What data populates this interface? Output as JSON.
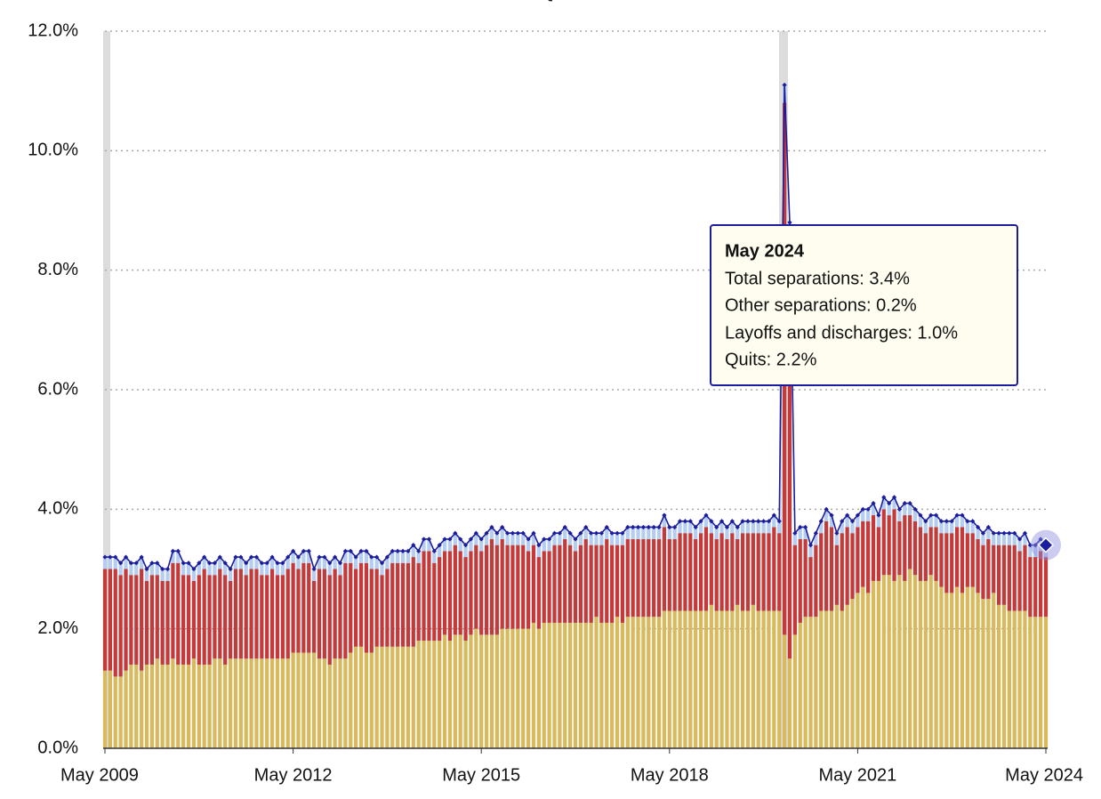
{
  "chart_data": {
    "type": "bar",
    "stacked": true,
    "categories": [
      "May 2009",
      null,
      null,
      null,
      null,
      null,
      null,
      null,
      null,
      null,
      null,
      null,
      null,
      null,
      null,
      null,
      null,
      null,
      null,
      null,
      null,
      null,
      null,
      null,
      null,
      null,
      null,
      null,
      null,
      null,
      null,
      null,
      null,
      null,
      null,
      null,
      "May 2012",
      null,
      null,
      null,
      null,
      null,
      null,
      null,
      null,
      null,
      null,
      null,
      null,
      null,
      null,
      null,
      null,
      null,
      null,
      null,
      null,
      null,
      null,
      null,
      null,
      null,
      null,
      null,
      null,
      null,
      null,
      null,
      null,
      null,
      null,
      null,
      "May 2015",
      null,
      null,
      null,
      null,
      null,
      null,
      null,
      null,
      null,
      null,
      null,
      null,
      null,
      null,
      null,
      null,
      null,
      null,
      null,
      null,
      null,
      null,
      null,
      null,
      null,
      null,
      null,
      null,
      null,
      null,
      null,
      null,
      null,
      null,
      null,
      "May 2018",
      null,
      null,
      null,
      null,
      null,
      null,
      null,
      null,
      null,
      null,
      null,
      null,
      null,
      null,
      null,
      null,
      null,
      null,
      null,
      null,
      null,
      null,
      null,
      null,
      null,
      null,
      null,
      null,
      null,
      null,
      null,
      null,
      null,
      null,
      null,
      "May 2021",
      null,
      null,
      null,
      null,
      null,
      null,
      null,
      null,
      null,
      null,
      null,
      null,
      null,
      null,
      null,
      null,
      null,
      null,
      null,
      null,
      null,
      null,
      null,
      null,
      null,
      null,
      null,
      null,
      null,
      null,
      null,
      null,
      null,
      null,
      null,
      "May 2024"
    ],
    "series": [
      {
        "name": "Quits",
        "type": "bar",
        "color": "#d8b95c",
        "values": [
          1.3,
          1.3,
          1.2,
          1.2,
          1.3,
          1.4,
          1.4,
          1.3,
          1.4,
          1.4,
          1.5,
          1.4,
          1.4,
          1.5,
          1.4,
          1.4,
          1.4,
          1.5,
          1.4,
          1.4,
          1.4,
          1.5,
          1.5,
          1.4,
          1.5,
          1.5,
          1.5,
          1.5,
          1.5,
          1.5,
          1.5,
          1.5,
          1.5,
          1.5,
          1.5,
          1.5,
          1.6,
          1.6,
          1.6,
          1.6,
          1.6,
          1.5,
          1.5,
          1.4,
          1.5,
          1.5,
          1.5,
          1.6,
          1.7,
          1.7,
          1.6,
          1.6,
          1.7,
          1.7,
          1.7,
          1.7,
          1.7,
          1.7,
          1.7,
          1.7,
          1.8,
          1.8,
          1.8,
          1.8,
          1.8,
          1.9,
          1.8,
          1.9,
          1.9,
          1.8,
          1.9,
          2.0,
          1.9,
          1.9,
          1.9,
          1.9,
          2.0,
          2.0,
          2.0,
          2.0,
          2.0,
          2.0,
          2.1,
          2.0,
          2.1,
          2.1,
          2.1,
          2.1,
          2.1,
          2.1,
          2.1,
          2.1,
          2.1,
          2.1,
          2.2,
          2.1,
          2.1,
          2.1,
          2.2,
          2.1,
          2.2,
          2.2,
          2.2,
          2.2,
          2.2,
          2.2,
          2.2,
          2.3,
          2.3,
          2.3,
          2.3,
          2.3,
          2.3,
          2.3,
          2.3,
          2.3,
          2.4,
          2.3,
          2.3,
          2.3,
          2.3,
          2.4,
          2.3,
          2.3,
          2.4,
          2.3,
          2.3,
          2.3,
          2.3,
          2.3,
          1.9,
          1.5,
          1.9,
          2.1,
          2.2,
          2.2,
          2.2,
          2.3,
          2.3,
          2.3,
          2.4,
          2.3,
          2.4,
          2.5,
          2.6,
          2.7,
          2.6,
          2.8,
          2.8,
          2.9,
          2.9,
          2.8,
          2.9,
          2.8,
          3.0,
          2.9,
          2.8,
          2.8,
          2.9,
          2.8,
          2.7,
          2.6,
          2.6,
          2.7,
          2.6,
          2.7,
          2.7,
          2.6,
          2.5,
          2.5,
          2.6,
          2.4,
          2.4,
          2.3,
          2.3,
          2.3,
          2.3,
          2.2,
          2.2,
          2.2,
          2.2
        ]
      },
      {
        "name": "Layoffs and discharges",
        "type": "bar",
        "color": "#c4393a",
        "values": [
          1.7,
          1.7,
          1.8,
          1.7,
          1.7,
          1.5,
          1.5,
          1.7,
          1.4,
          1.5,
          1.4,
          1.4,
          1.4,
          1.6,
          1.7,
          1.5,
          1.5,
          1.3,
          1.5,
          1.6,
          1.5,
          1.4,
          1.5,
          1.5,
          1.3,
          1.5,
          1.5,
          1.4,
          1.5,
          1.5,
          1.4,
          1.4,
          1.5,
          1.4,
          1.4,
          1.5,
          1.5,
          1.4,
          1.5,
          1.5,
          1.2,
          1.5,
          1.5,
          1.5,
          1.5,
          1.4,
          1.6,
          1.5,
          1.3,
          1.4,
          1.5,
          1.4,
          1.3,
          1.2,
          1.3,
          1.4,
          1.4,
          1.4,
          1.4,
          1.5,
          1.3,
          1.5,
          1.5,
          1.3,
          1.4,
          1.4,
          1.5,
          1.5,
          1.4,
          1.4,
          1.4,
          1.4,
          1.4,
          1.5,
          1.6,
          1.5,
          1.5,
          1.4,
          1.4,
          1.4,
          1.4,
          1.3,
          1.3,
          1.2,
          1.2,
          1.2,
          1.3,
          1.3,
          1.4,
          1.3,
          1.2,
          1.3,
          1.4,
          1.3,
          1.2,
          1.3,
          1.4,
          1.3,
          1.2,
          1.3,
          1.3,
          1.3,
          1.3,
          1.3,
          1.3,
          1.3,
          1.3,
          1.4,
          1.2,
          1.2,
          1.3,
          1.3,
          1.3,
          1.2,
          1.3,
          1.4,
          1.2,
          1.2,
          1.3,
          1.2,
          1.3,
          1.1,
          1.3,
          1.3,
          1.2,
          1.3,
          1.3,
          1.3,
          1.4,
          1.3,
          8.9,
          7.0,
          1.5,
          1.4,
          1.3,
          1.0,
          1.2,
          1.3,
          1.5,
          1.4,
          1.0,
          1.3,
          1.3,
          1.1,
          1.1,
          1.1,
          1.2,
          1.1,
          0.9,
          1.1,
          1.0,
          1.2,
          0.9,
          1.1,
          0.9,
          0.9,
          0.9,
          0.8,
          0.8,
          0.9,
          0.9,
          1.0,
          1.0,
          1.0,
          1.1,
          0.9,
          0.9,
          0.9,
          0.9,
          1.0,
          0.8,
          1.0,
          1.0,
          1.1,
          1.1,
          1.0,
          1.1,
          1.0,
          1.0,
          1.1,
          1.0
        ]
      },
      {
        "name": "Other separations",
        "type": "bar",
        "color": "#b4cdf0",
        "values": [
          0.2,
          0.2,
          0.2,
          0.2,
          0.2,
          0.2,
          0.2,
          0.2,
          0.2,
          0.2,
          0.2,
          0.2,
          0.2,
          0.2,
          0.2,
          0.2,
          0.2,
          0.2,
          0.2,
          0.2,
          0.2,
          0.2,
          0.2,
          0.2,
          0.2,
          0.2,
          0.2,
          0.2,
          0.2,
          0.2,
          0.2,
          0.2,
          0.2,
          0.2,
          0.2,
          0.2,
          0.2,
          0.2,
          0.2,
          0.2,
          0.2,
          0.2,
          0.2,
          0.2,
          0.2,
          0.2,
          0.2,
          0.2,
          0.2,
          0.2,
          0.2,
          0.2,
          0.2,
          0.2,
          0.2,
          0.2,
          0.2,
          0.2,
          0.2,
          0.2,
          0.2,
          0.2,
          0.2,
          0.2,
          0.2,
          0.2,
          0.2,
          0.2,
          0.2,
          0.2,
          0.2,
          0.2,
          0.2,
          0.2,
          0.2,
          0.2,
          0.2,
          0.2,
          0.2,
          0.2,
          0.2,
          0.2,
          0.2,
          0.2,
          0.2,
          0.2,
          0.2,
          0.2,
          0.2,
          0.2,
          0.2,
          0.2,
          0.2,
          0.2,
          0.2,
          0.2,
          0.2,
          0.2,
          0.2,
          0.2,
          0.2,
          0.2,
          0.2,
          0.2,
          0.2,
          0.2,
          0.2,
          0.2,
          0.2,
          0.2,
          0.2,
          0.2,
          0.2,
          0.2,
          0.2,
          0.2,
          0.2,
          0.2,
          0.2,
          0.2,
          0.2,
          0.2,
          0.2,
          0.2,
          0.2,
          0.2,
          0.2,
          0.2,
          0.2,
          0.2,
          0.3,
          0.3,
          0.2,
          0.2,
          0.2,
          0.2,
          0.2,
          0.2,
          0.2,
          0.2,
          0.2,
          0.2,
          0.2,
          0.2,
          0.2,
          0.2,
          0.2,
          0.2,
          0.2,
          0.2,
          0.2,
          0.2,
          0.2,
          0.2,
          0.2,
          0.2,
          0.2,
          0.2,
          0.2,
          0.2,
          0.2,
          0.2,
          0.2,
          0.2,
          0.2,
          0.2,
          0.2,
          0.2,
          0.2,
          0.2,
          0.2,
          0.2,
          0.2,
          0.2,
          0.2,
          0.2,
          0.2,
          0.2,
          0.2,
          0.2,
          0.2
        ]
      },
      {
        "name": "Total separations",
        "type": "line",
        "color": "#1c1c9e",
        "values": [
          3.2,
          3.2,
          3.2,
          3.1,
          3.2,
          3.1,
          3.1,
          3.2,
          3.0,
          3.1,
          3.1,
          3.0,
          3.0,
          3.3,
          3.3,
          3.1,
          3.1,
          3.0,
          3.1,
          3.2,
          3.1,
          3.1,
          3.2,
          3.1,
          3.0,
          3.2,
          3.2,
          3.1,
          3.2,
          3.2,
          3.1,
          3.1,
          3.2,
          3.1,
          3.1,
          3.2,
          3.3,
          3.2,
          3.3,
          3.3,
          3.0,
          3.2,
          3.2,
          3.1,
          3.2,
          3.1,
          3.3,
          3.3,
          3.2,
          3.3,
          3.3,
          3.2,
          3.2,
          3.1,
          3.2,
          3.3,
          3.3,
          3.3,
          3.3,
          3.4,
          3.3,
          3.5,
          3.5,
          3.3,
          3.4,
          3.5,
          3.5,
          3.6,
          3.5,
          3.4,
          3.5,
          3.6,
          3.5,
          3.6,
          3.7,
          3.6,
          3.7,
          3.6,
          3.6,
          3.6,
          3.6,
          3.5,
          3.6,
          3.4,
          3.5,
          3.5,
          3.6,
          3.6,
          3.7,
          3.6,
          3.5,
          3.6,
          3.7,
          3.6,
          3.6,
          3.6,
          3.7,
          3.6,
          3.6,
          3.6,
          3.7,
          3.7,
          3.7,
          3.7,
          3.7,
          3.7,
          3.7,
          3.9,
          3.7,
          3.7,
          3.8,
          3.8,
          3.8,
          3.7,
          3.8,
          3.9,
          3.8,
          3.7,
          3.8,
          3.7,
          3.8,
          3.7,
          3.8,
          3.8,
          3.8,
          3.8,
          3.8,
          3.8,
          3.9,
          3.8,
          11.1,
          8.8,
          3.6,
          3.7,
          3.7,
          3.4,
          3.6,
          3.8,
          4.0,
          3.9,
          3.6,
          3.8,
          3.9,
          3.8,
          3.9,
          4.0,
          4.0,
          4.1,
          3.9,
          4.2,
          4.1,
          4.2,
          4.0,
          4.1,
          4.1,
          4.0,
          3.9,
          3.8,
          3.9,
          3.9,
          3.8,
          3.8,
          3.8,
          3.9,
          3.9,
          3.8,
          3.8,
          3.7,
          3.6,
          3.7,
          3.6,
          3.6,
          3.6,
          3.6,
          3.6,
          3.5,
          3.6,
          3.4,
          3.4,
          3.5,
          3.4
        ]
      }
    ],
    "ylim": [
      0,
      12
    ],
    "yticks": [
      {
        "value": 0,
        "label": "0.0%"
      },
      {
        "value": 2,
        "label": "2.0%"
      },
      {
        "value": 4,
        "label": "4.0%"
      },
      {
        "value": 6,
        "label": "6.0%"
      },
      {
        "value": 8,
        "label": "8.0%"
      },
      {
        "value": 10,
        "label": "10.0%"
      },
      {
        "value": 12,
        "label": "12.0%"
      }
    ],
    "grid": true,
    "tooltip": {
      "title": "May 2024",
      "lines": [
        "Total separations: 3.4%",
        "Other separations: 0.2%",
        "Layoffs and discharges: 1.0%",
        "Quits: 2.2%"
      ]
    }
  }
}
